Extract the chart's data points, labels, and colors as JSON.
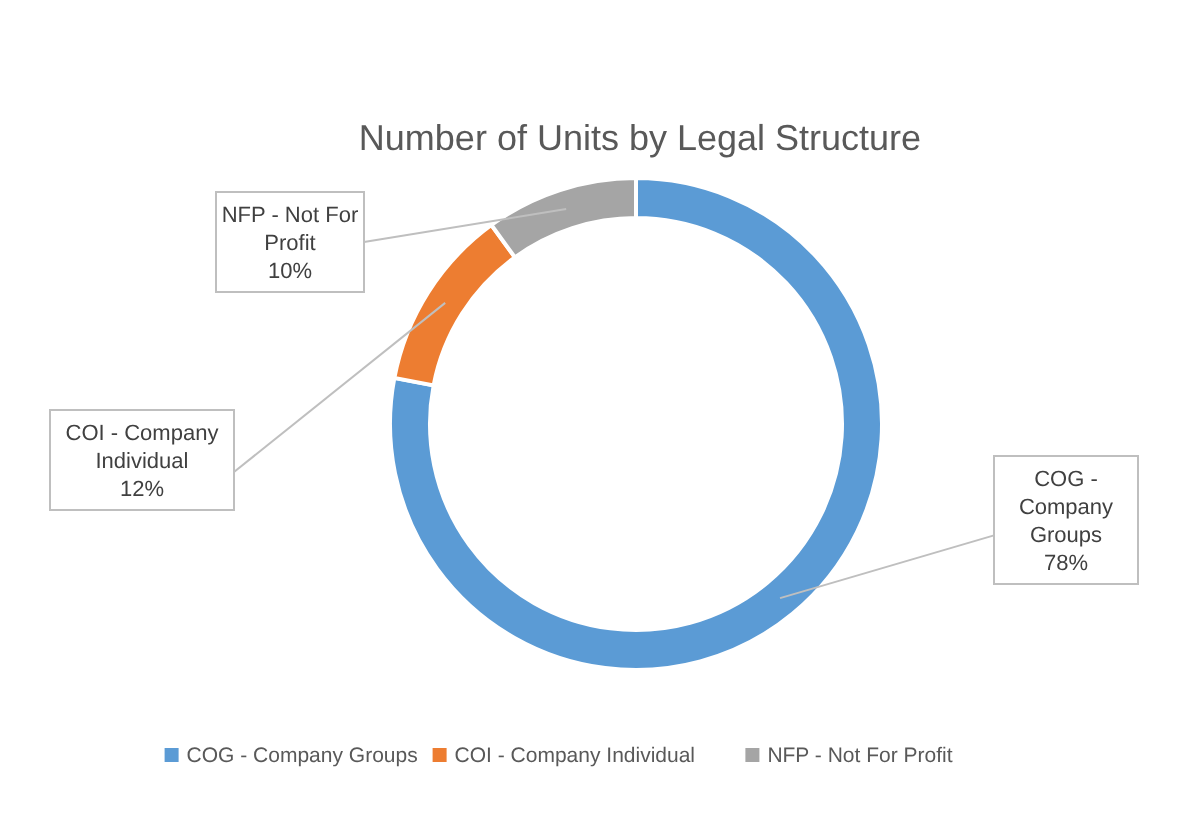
{
  "chart_data": {
    "type": "donut",
    "title": "Number of Units by Legal Structure",
    "categories": [
      "COG - Company Groups",
      "COI - Company Individual",
      "NFP - Not For Profit"
    ],
    "values": [
      78,
      12,
      10
    ],
    "colors": [
      "#5b9bd5",
      "#ed7d31",
      "#a5a5a5"
    ],
    "value_labels": [
      "78%",
      "12%",
      "10%"
    ],
    "legend": "bottom"
  }
}
